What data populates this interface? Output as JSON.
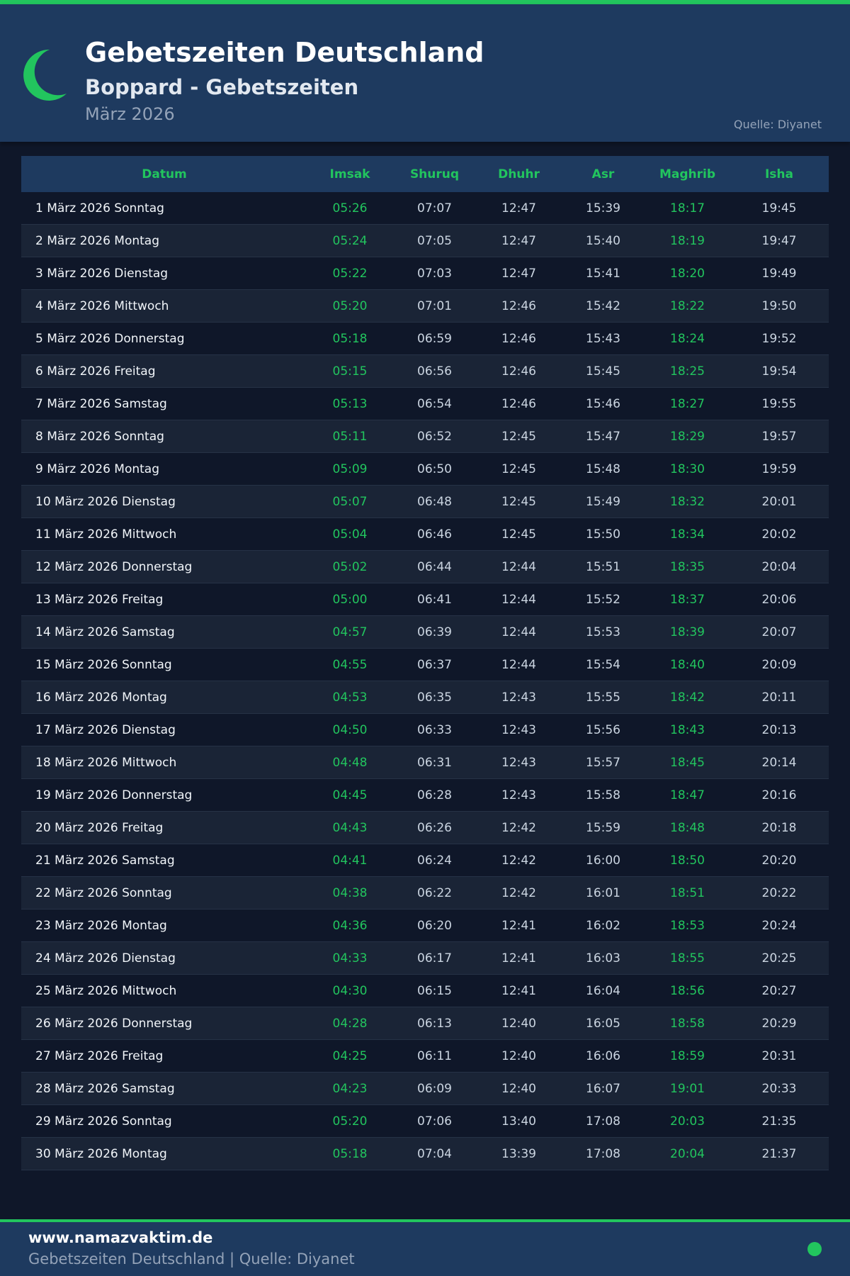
{
  "header": {
    "title": "Gebetszeiten Deutschland",
    "subtitle": "Boppard - Gebetszeiten",
    "month": "März 2026",
    "source": "Quelle: Diyanet",
    "icon": "crescent-moon-icon"
  },
  "colors": {
    "accent": "#22c55e",
    "header_bg": "#1e3a5f",
    "page_bg": "#0f1729"
  },
  "table": {
    "columns": [
      "Datum",
      "Imsak",
      "Shuruq",
      "Dhuhr",
      "Asr",
      "Maghrib",
      "Isha"
    ],
    "rows": [
      [
        "1 März 2026 Sonntag",
        "05:26",
        "07:07",
        "12:47",
        "15:39",
        "18:17",
        "19:45"
      ],
      [
        "2 März 2026 Montag",
        "05:24",
        "07:05",
        "12:47",
        "15:40",
        "18:19",
        "19:47"
      ],
      [
        "3 März 2026 Dienstag",
        "05:22",
        "07:03",
        "12:47",
        "15:41",
        "18:20",
        "19:49"
      ],
      [
        "4 März 2026 Mittwoch",
        "05:20",
        "07:01",
        "12:46",
        "15:42",
        "18:22",
        "19:50"
      ],
      [
        "5 März 2026 Donnerstag",
        "05:18",
        "06:59",
        "12:46",
        "15:43",
        "18:24",
        "19:52"
      ],
      [
        "6 März 2026 Freitag",
        "05:15",
        "06:56",
        "12:46",
        "15:45",
        "18:25",
        "19:54"
      ],
      [
        "7 März 2026 Samstag",
        "05:13",
        "06:54",
        "12:46",
        "15:46",
        "18:27",
        "19:55"
      ],
      [
        "8 März 2026 Sonntag",
        "05:11",
        "06:52",
        "12:45",
        "15:47",
        "18:29",
        "19:57"
      ],
      [
        "9 März 2026 Montag",
        "05:09",
        "06:50",
        "12:45",
        "15:48",
        "18:30",
        "19:59"
      ],
      [
        "10 März 2026 Dienstag",
        "05:07",
        "06:48",
        "12:45",
        "15:49",
        "18:32",
        "20:01"
      ],
      [
        "11 März 2026 Mittwoch",
        "05:04",
        "06:46",
        "12:45",
        "15:50",
        "18:34",
        "20:02"
      ],
      [
        "12 März 2026 Donnerstag",
        "05:02",
        "06:44",
        "12:44",
        "15:51",
        "18:35",
        "20:04"
      ],
      [
        "13 März 2026 Freitag",
        "05:00",
        "06:41",
        "12:44",
        "15:52",
        "18:37",
        "20:06"
      ],
      [
        "14 März 2026 Samstag",
        "04:57",
        "06:39",
        "12:44",
        "15:53",
        "18:39",
        "20:07"
      ],
      [
        "15 März 2026 Sonntag",
        "04:55",
        "06:37",
        "12:44",
        "15:54",
        "18:40",
        "20:09"
      ],
      [
        "16 März 2026 Montag",
        "04:53",
        "06:35",
        "12:43",
        "15:55",
        "18:42",
        "20:11"
      ],
      [
        "17 März 2026 Dienstag",
        "04:50",
        "06:33",
        "12:43",
        "15:56",
        "18:43",
        "20:13"
      ],
      [
        "18 März 2026 Mittwoch",
        "04:48",
        "06:31",
        "12:43",
        "15:57",
        "18:45",
        "20:14"
      ],
      [
        "19 März 2026 Donnerstag",
        "04:45",
        "06:28",
        "12:43",
        "15:58",
        "18:47",
        "20:16"
      ],
      [
        "20 März 2026 Freitag",
        "04:43",
        "06:26",
        "12:42",
        "15:59",
        "18:48",
        "20:18"
      ],
      [
        "21 März 2026 Samstag",
        "04:41",
        "06:24",
        "12:42",
        "16:00",
        "18:50",
        "20:20"
      ],
      [
        "22 März 2026 Sonntag",
        "04:38",
        "06:22",
        "12:42",
        "16:01",
        "18:51",
        "20:22"
      ],
      [
        "23 März 2026 Montag",
        "04:36",
        "06:20",
        "12:41",
        "16:02",
        "18:53",
        "20:24"
      ],
      [
        "24 März 2026 Dienstag",
        "04:33",
        "06:17",
        "12:41",
        "16:03",
        "18:55",
        "20:25"
      ],
      [
        "25 März 2026 Mittwoch",
        "04:30",
        "06:15",
        "12:41",
        "16:04",
        "18:56",
        "20:27"
      ],
      [
        "26 März 2026 Donnerstag",
        "04:28",
        "06:13",
        "12:40",
        "16:05",
        "18:58",
        "20:29"
      ],
      [
        "27 März 2026 Freitag",
        "04:25",
        "06:11",
        "12:40",
        "16:06",
        "18:59",
        "20:31"
      ],
      [
        "28 März 2026 Samstag",
        "04:23",
        "06:09",
        "12:40",
        "16:07",
        "19:01",
        "20:33"
      ],
      [
        "29 März 2026 Sonntag",
        "05:20",
        "07:06",
        "13:40",
        "17:08",
        "20:03",
        "21:35"
      ],
      [
        "30 März 2026 Montag",
        "05:18",
        "07:04",
        "13:39",
        "17:08",
        "20:04",
        "21:37"
      ]
    ]
  },
  "footer": {
    "site": "www.namazvaktim.de",
    "tagline": "Gebetszeiten Deutschland | Quelle: Diyanet"
  }
}
